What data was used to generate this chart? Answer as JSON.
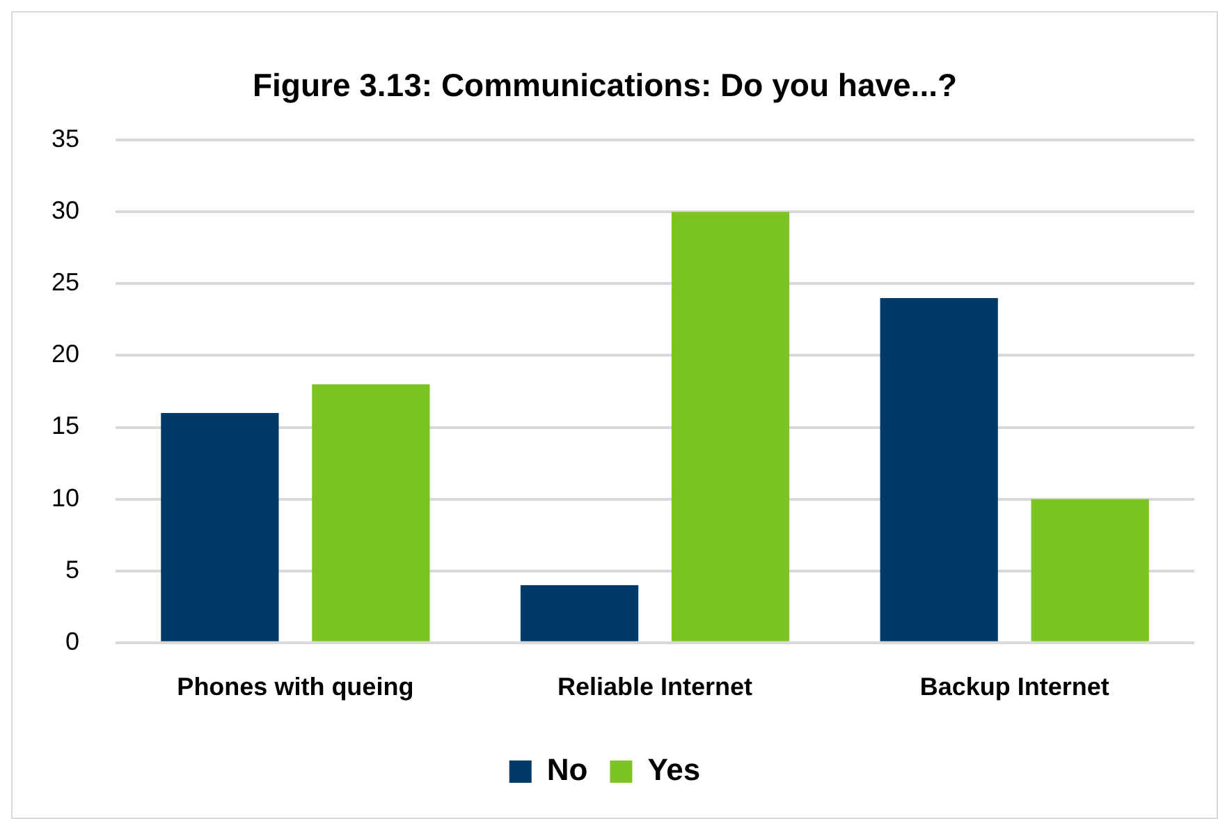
{
  "chart_data": {
    "type": "bar",
    "title": "Figure 3.13: Communications: Do you have...?",
    "categories": [
      "Phones with queing",
      "Reliable Internet",
      "Backup Internet"
    ],
    "series": [
      {
        "name": "No",
        "color": "#003a68",
        "values": [
          16,
          4,
          24
        ]
      },
      {
        "name": "Yes",
        "color": "#7cc423",
        "values": [
          18,
          30,
          10
        ]
      }
    ],
    "ylim": [
      0,
      35
    ],
    "yticks": [
      0,
      5,
      10,
      15,
      20,
      25,
      30,
      35
    ],
    "grid": "y",
    "legend": "bottom"
  }
}
